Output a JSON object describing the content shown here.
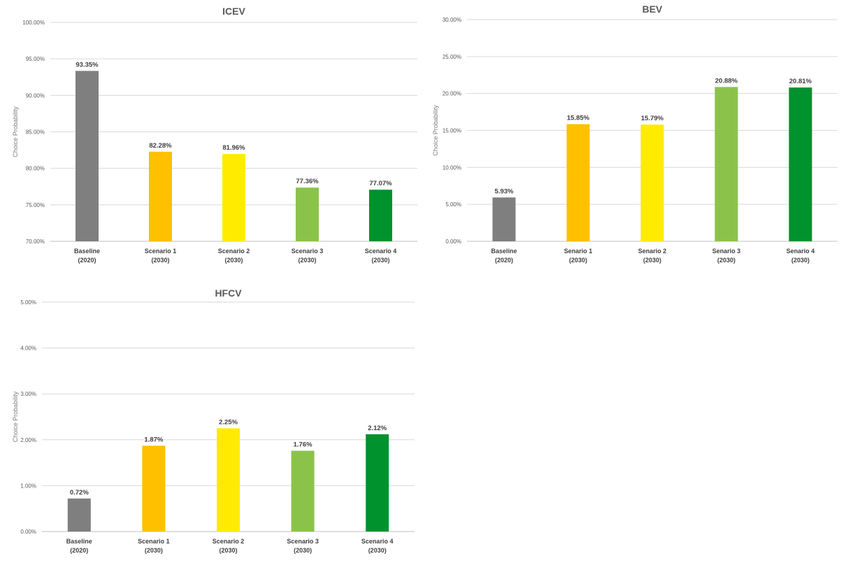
{
  "chart_data": [
    {
      "id": "icev",
      "type": "bar",
      "title": "ICEV",
      "ylabel": "Choice Probability",
      "xlabel": "",
      "categories": [
        [
          "Baseline",
          "(2020)"
        ],
        [
          "Scenario 1",
          "(2030)"
        ],
        [
          "Scenario 2",
          "(2030)"
        ],
        [
          "Scenario 3",
          "(2030)"
        ],
        [
          "Scenario 4",
          "(2030)"
        ]
      ],
      "values": [
        93.35,
        82.28,
        81.96,
        77.36,
        77.07
      ],
      "data_labels": [
        "93.35%",
        "82.28%",
        "81.96%",
        "77.36%",
        "77.07%"
      ],
      "ylim": [
        70,
        100
      ],
      "yticks": [
        70,
        75,
        80,
        85,
        90,
        95,
        100
      ],
      "ytick_labels": [
        "70.00%",
        "75.00%",
        "80.00%",
        "85.00%",
        "90.00%",
        "95.00%",
        "100.00%"
      ],
      "colors": [
        "#7f7f7f",
        "#ffc000",
        "#ffeb00",
        "#8bc34a",
        "#00922d"
      ],
      "grid": true,
      "legend": "none"
    },
    {
      "id": "bev",
      "type": "bar",
      "title": "BEV",
      "ylabel": "Choice Probability",
      "xlabel": "",
      "categories": [
        [
          "Baseline",
          "(2020)"
        ],
        [
          "Senario 1",
          "(2030)"
        ],
        [
          "Senario 2",
          "(2030)"
        ],
        [
          "Senario 3",
          "(2030)"
        ],
        [
          "Senario 4",
          "(2030)"
        ]
      ],
      "values": [
        5.93,
        15.85,
        15.79,
        20.88,
        20.81
      ],
      "data_labels": [
        "5.93%",
        "15.85%",
        "15.79%",
        "20.88%",
        "20.81%"
      ],
      "ylim": [
        0,
        30
      ],
      "yticks": [
        0,
        5,
        10,
        15,
        20,
        25,
        30
      ],
      "ytick_labels": [
        "0.00%",
        "5.00%",
        "10.00%",
        "15.00%",
        "20.00%",
        "25.00%",
        "30.00%"
      ],
      "colors": [
        "#7f7f7f",
        "#ffc000",
        "#ffeb00",
        "#8bc34a",
        "#00922d"
      ],
      "grid": true,
      "legend": "none"
    },
    {
      "id": "hfcv",
      "type": "bar",
      "title": "HFCV",
      "ylabel": "Choice Probability",
      "xlabel": "",
      "categories": [
        [
          "Baseline",
          "(2020)"
        ],
        [
          "Scenario 1",
          "(2030)"
        ],
        [
          "Scenario 2",
          "(2030)"
        ],
        [
          "Scenario 3",
          "(2030)"
        ],
        [
          "Scenario 4",
          "(2030)"
        ]
      ],
      "values": [
        0.72,
        1.87,
        2.25,
        1.76,
        2.12
      ],
      "data_labels": [
        "0.72%",
        "1.87%",
        "2.25%",
        "1.76%",
        "2.12%"
      ],
      "ylim": [
        0,
        5
      ],
      "yticks": [
        0,
        1,
        2,
        3,
        4,
        5
      ],
      "ytick_labels": [
        "0.00%",
        "1.00%",
        "2.00%",
        "3.00%",
        "4.00%",
        "5.00%"
      ],
      "colors": [
        "#7f7f7f",
        "#ffc000",
        "#ffeb00",
        "#8bc34a",
        "#00922d"
      ],
      "grid": true,
      "legend": "none"
    }
  ]
}
